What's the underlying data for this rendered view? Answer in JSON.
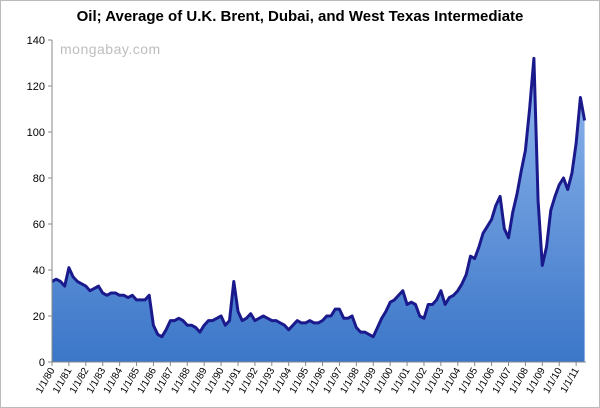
{
  "chart_data": {
    "type": "area",
    "title": "Oil; Average of U.K. Brent, Dubai, and West Texas Intermediate",
    "watermark": "mongabay.com",
    "color": "#1a1a8c",
    "fill_top": "#92b8ee",
    "fill_bottom": "#3b76c8",
    "grid": false,
    "ylim": [
      0,
      140
    ],
    "yticks": [
      0,
      20,
      40,
      60,
      80,
      100,
      120,
      140
    ],
    "xlim": [
      "1980-01",
      "2011-08"
    ],
    "xticks": [
      {
        "value": "1980-01",
        "label": "1/1/80"
      },
      {
        "value": "1981-01",
        "label": "1/1/81"
      },
      {
        "value": "1982-01",
        "label": "1/1/82"
      },
      {
        "value": "1983-01",
        "label": "1/1/83"
      },
      {
        "value": "1984-01",
        "label": "1/1/84"
      },
      {
        "value": "1985-01",
        "label": "1/1/85"
      },
      {
        "value": "1986-01",
        "label": "1/1/86"
      },
      {
        "value": "1987-01",
        "label": "1/1/87"
      },
      {
        "value": "1988-01",
        "label": "1/1/88"
      },
      {
        "value": "1989-01",
        "label": "1/1/89"
      },
      {
        "value": "1990-01",
        "label": "1/1/90"
      },
      {
        "value": "1991-01",
        "label": "1/1/91"
      },
      {
        "value": "1992-01",
        "label": "1/1/92"
      },
      {
        "value": "1993-01",
        "label": "1/1/93"
      },
      {
        "value": "1994-01",
        "label": "1/1/94"
      },
      {
        "value": "1995-01",
        "label": "1/1/95"
      },
      {
        "value": "1996-01",
        "label": "1/1/96"
      },
      {
        "value": "1997-01",
        "label": "1/1/97"
      },
      {
        "value": "1998-01",
        "label": "1/1/98"
      },
      {
        "value": "1999-01",
        "label": "1/1/99"
      },
      {
        "value": "2000-01",
        "label": "1/1/00"
      },
      {
        "value": "2001-01",
        "label": "1/1/01"
      },
      {
        "value": "2002-01",
        "label": "1/1/02"
      },
      {
        "value": "2003-01",
        "label": "1/1/03"
      },
      {
        "value": "2004-01",
        "label": "1/1/04"
      },
      {
        "value": "2005-01",
        "label": "1/1/05"
      },
      {
        "value": "2006-01",
        "label": "1/1/06"
      },
      {
        "value": "2007-01",
        "label": "1/1/07"
      },
      {
        "value": "2008-01",
        "label": "1/1/08"
      },
      {
        "value": "2009-01",
        "label": "1/1/09"
      },
      {
        "value": "2010-01",
        "label": "1/1/10"
      },
      {
        "value": "2011-01",
        "label": "1/1/11"
      }
    ],
    "x": [
      "1980-01",
      "1980-04",
      "1980-07",
      "1980-10",
      "1981-01",
      "1981-04",
      "1981-07",
      "1981-10",
      "1982-01",
      "1982-04",
      "1982-07",
      "1982-10",
      "1983-01",
      "1983-04",
      "1983-07",
      "1983-10",
      "1984-01",
      "1984-04",
      "1984-07",
      "1984-10",
      "1985-01",
      "1985-04",
      "1985-07",
      "1985-10",
      "1986-01",
      "1986-04",
      "1986-07",
      "1986-10",
      "1987-01",
      "1987-04",
      "1987-07",
      "1987-10",
      "1988-01",
      "1988-04",
      "1988-07",
      "1988-10",
      "1989-01",
      "1989-04",
      "1989-07",
      "1989-10",
      "1990-01",
      "1990-04",
      "1990-07",
      "1990-10",
      "1991-01",
      "1991-04",
      "1991-07",
      "1991-10",
      "1992-01",
      "1992-04",
      "1992-07",
      "1992-10",
      "1993-01",
      "1993-04",
      "1993-07",
      "1993-10",
      "1994-01",
      "1994-04",
      "1994-07",
      "1994-10",
      "1995-01",
      "1995-04",
      "1995-07",
      "1995-10",
      "1996-01",
      "1996-04",
      "1996-07",
      "1996-10",
      "1997-01",
      "1997-04",
      "1997-07",
      "1997-10",
      "1998-01",
      "1998-04",
      "1998-07",
      "1998-10",
      "1999-01",
      "1999-04",
      "1999-07",
      "1999-10",
      "2000-01",
      "2000-04",
      "2000-07",
      "2000-10",
      "2001-01",
      "2001-04",
      "2001-07",
      "2001-10",
      "2002-01",
      "2002-04",
      "2002-07",
      "2002-10",
      "2003-01",
      "2003-04",
      "2003-07",
      "2003-10",
      "2004-01",
      "2004-04",
      "2004-07",
      "2004-10",
      "2005-01",
      "2005-04",
      "2005-07",
      "2005-10",
      "2006-01",
      "2006-04",
      "2006-07",
      "2006-10",
      "2007-01",
      "2007-04",
      "2007-07",
      "2007-10",
      "2008-01",
      "2008-04",
      "2008-07",
      "2008-10",
      "2009-01",
      "2009-04",
      "2009-07",
      "2009-10",
      "2010-01",
      "2010-04",
      "2010-07",
      "2010-10",
      "2011-01",
      "2011-04",
      "2011-07"
    ],
    "values": [
      35,
      36,
      35,
      33,
      41,
      37,
      35,
      34,
      33,
      31,
      32,
      33,
      30,
      29,
      30,
      30,
      29,
      29,
      28,
      29,
      27,
      27,
      27,
      29,
      16,
      12,
      11,
      14,
      18,
      18,
      19,
      18,
      16,
      16,
      15,
      13,
      16,
      18,
      18,
      19,
      20,
      16,
      18,
      35,
      22,
      18,
      19,
      21,
      18,
      19,
      20,
      19,
      18,
      18,
      17,
      16,
      14,
      16,
      18,
      17,
      17,
      18,
      17,
      17,
      18,
      20,
      20,
      23,
      23,
      19,
      19,
      20,
      15,
      13,
      13,
      12,
      11,
      15,
      19,
      22,
      26,
      27,
      29,
      31,
      25,
      26,
      25,
      20,
      19,
      25,
      25,
      27,
      31,
      25,
      28,
      29,
      31,
      34,
      38,
      46,
      45,
      50,
      56,
      59,
      62,
      68,
      72,
      58,
      54,
      65,
      73,
      83,
      92,
      110,
      132,
      70,
      42,
      50,
      66,
      72,
      77,
      80,
      75,
      82,
      95,
      115,
      105
    ]
  }
}
